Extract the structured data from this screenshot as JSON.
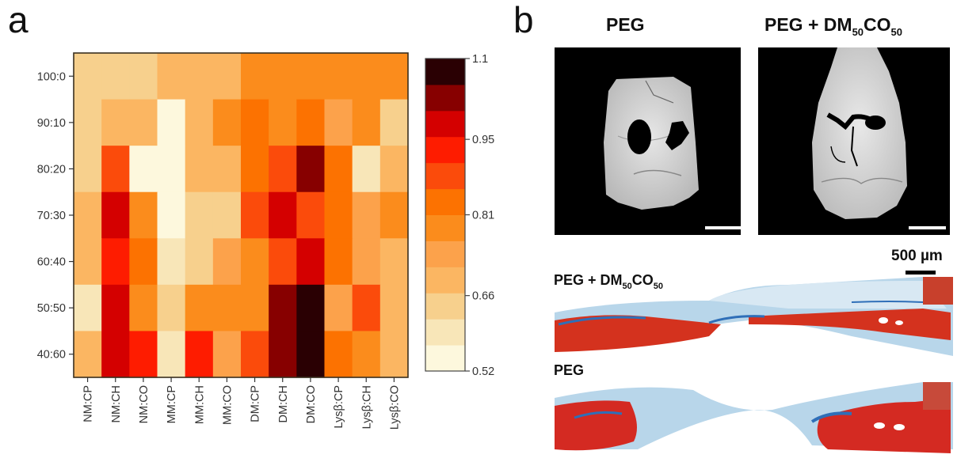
{
  "panels": {
    "a": {
      "label": "a"
    },
    "b": {
      "label": "b",
      "ct_titles": [
        {
          "main": "PEG",
          "parts": []
        },
        {
          "main": "PEG + DM",
          "sub1": "50",
          "mid": "CO",
          "sub2": "50"
        }
      ],
      "histology": [
        {
          "main": "PEG + DM",
          "sub1": "50",
          "mid": "CO",
          "sub2": "50"
        },
        {
          "main": "PEG"
        }
      ],
      "scale_label": "500 µm"
    }
  },
  "chart_data": {
    "type": "heatmap",
    "title": "",
    "xlabel": "",
    "ylabel": "",
    "x_categories": [
      "NM:CP",
      "NM:CH",
      "NM:CO",
      "MM:CP",
      "MM:CH",
      "MM:CO",
      "DM:CP",
      "DM:CH",
      "DM:CO",
      "Lysβ:CP",
      "Lysβ:CH",
      "Lysβ:CO"
    ],
    "y_categories": [
      "100:0",
      "90:10",
      "80:20",
      "70:30",
      "60:40",
      "50:50",
      "40:60"
    ],
    "values": [
      [
        0.64,
        0.64,
        0.64,
        0.69,
        0.69,
        0.69,
        0.79,
        0.79,
        0.79,
        0.79,
        0.79,
        0.79
      ],
      [
        0.64,
        0.69,
        0.69,
        0.54,
        0.69,
        0.79,
        0.83,
        0.79,
        0.83,
        0.74,
        0.79,
        0.64
      ],
      [
        0.64,
        0.88,
        0.54,
        0.54,
        0.69,
        0.69,
        0.83,
        0.88,
        1.03,
        0.83,
        0.59,
        0.69
      ],
      [
        0.69,
        0.98,
        0.79,
        0.54,
        0.64,
        0.64,
        0.88,
        0.98,
        0.88,
        0.83,
        0.74,
        0.79
      ],
      [
        0.69,
        0.93,
        0.83,
        0.59,
        0.64,
        0.74,
        0.79,
        0.88,
        0.98,
        0.83,
        0.74,
        0.69
      ],
      [
        0.59,
        0.98,
        0.79,
        0.64,
        0.79,
        0.79,
        0.79,
        1.03,
        1.08,
        0.74,
        0.88,
        0.69
      ],
      [
        0.69,
        0.98,
        0.93,
        0.59,
        0.93,
        0.74,
        0.88,
        1.03,
        1.08,
        0.83,
        0.79,
        0.69
      ]
    ],
    "colorbar": {
      "range": [
        0.52,
        1.1
      ],
      "ticks": [
        "0.52",
        "0.66",
        "0.81",
        "0.95",
        "1.1"
      ],
      "tick_values": [
        0.52,
        0.66,
        0.81,
        0.95,
        1.1
      ],
      "bins": 12,
      "colors": [
        "#fdf8dd",
        "#f8e6b8",
        "#f7d08d",
        "#fbb662",
        "#fca24b",
        "#fb8c1c",
        "#fc7201",
        "#fb4b0b",
        "#fe1c00",
        "#d40000",
        "#870000",
        "#2a0003"
      ]
    },
    "grid": false,
    "legend": "colorbar-right"
  }
}
